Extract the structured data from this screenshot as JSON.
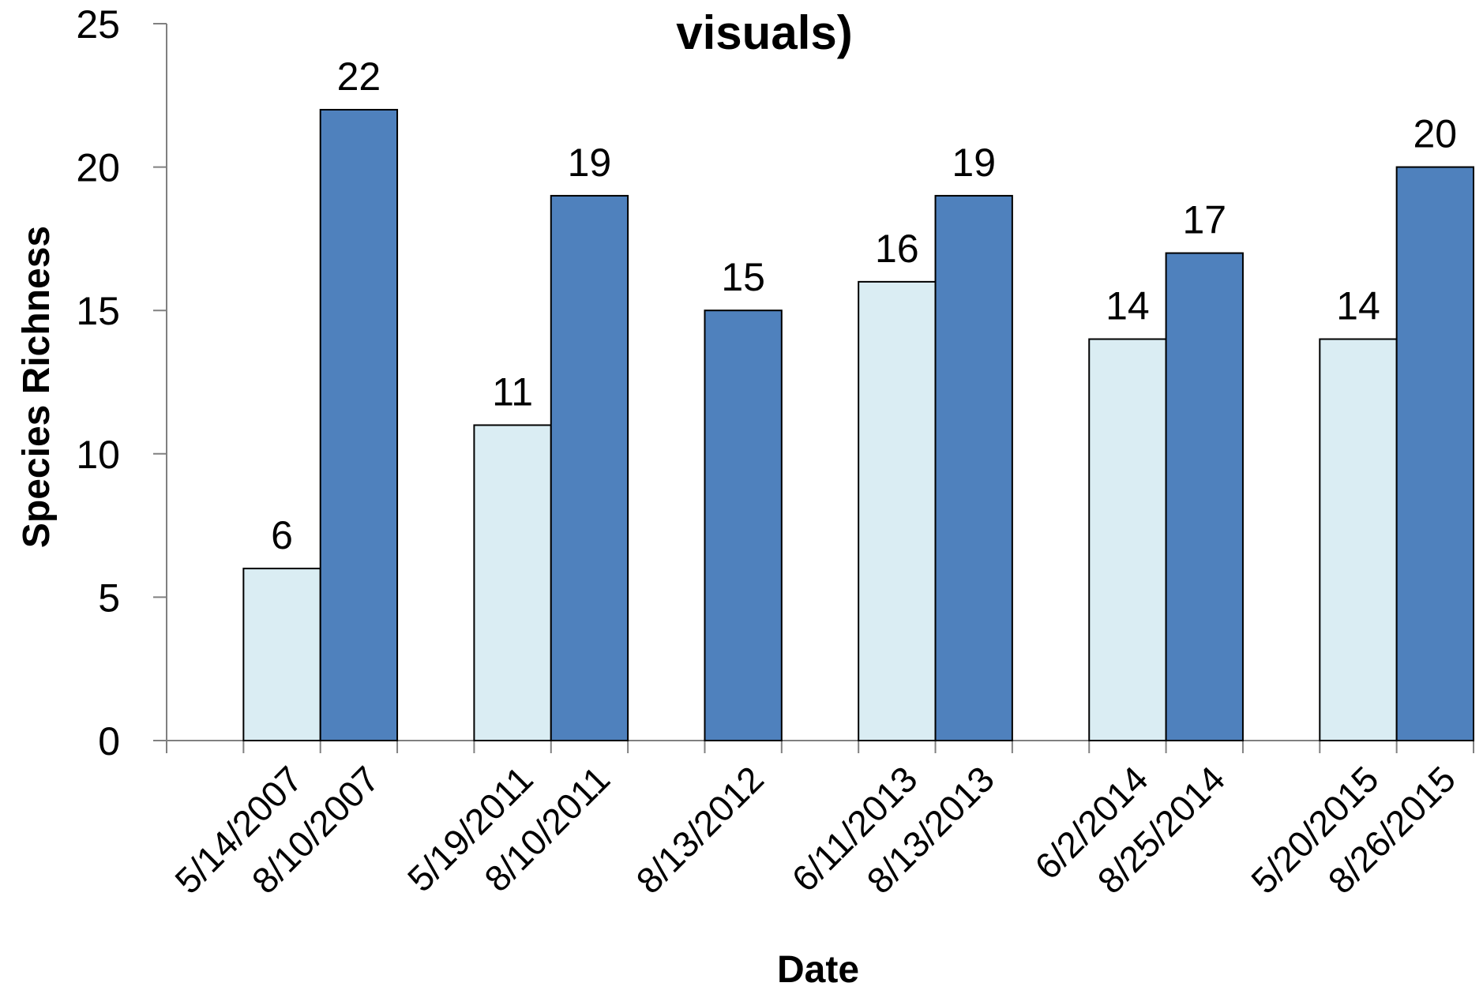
{
  "chart_data": {
    "type": "bar",
    "title": "visuals)",
    "xlabel": "Date",
    "ylabel": "Species Richness",
    "ylim": [
      0,
      25
    ],
    "yticks": [
      0,
      5,
      10,
      15,
      20,
      25
    ],
    "grid": false,
    "legend": "none",
    "colors": {
      "light": "#daedf3",
      "dark": "#4f81bd",
      "stroke": "#000000",
      "axis": "#808080"
    },
    "groups": [
      {
        "bars": [
          {
            "date": "5/14/2007",
            "value": 6,
            "shade": "light"
          },
          {
            "date": "8/10/2007",
            "value": 22,
            "shade": "dark"
          }
        ]
      },
      {
        "bars": [
          {
            "date": "5/19/2011",
            "value": 11,
            "shade": "light"
          },
          {
            "date": "8/10/2011",
            "value": 19,
            "shade": "dark"
          }
        ]
      },
      {
        "bars": [
          {
            "date": "8/13/2012",
            "value": 15,
            "shade": "dark"
          }
        ]
      },
      {
        "bars": [
          {
            "date": "6/11/2013",
            "value": 16,
            "shade": "light"
          },
          {
            "date": "8/13/2013",
            "value": 19,
            "shade": "dark"
          }
        ]
      },
      {
        "bars": [
          {
            "date": "6/2/2014",
            "value": 14,
            "shade": "light"
          },
          {
            "date": "8/25/2014",
            "value": 17,
            "shade": "dark"
          }
        ]
      },
      {
        "bars": [
          {
            "date": "5/20/2015",
            "value": 14,
            "shade": "light"
          },
          {
            "date": "8/26/2015",
            "value": 20,
            "shade": "dark"
          }
        ]
      }
    ]
  }
}
